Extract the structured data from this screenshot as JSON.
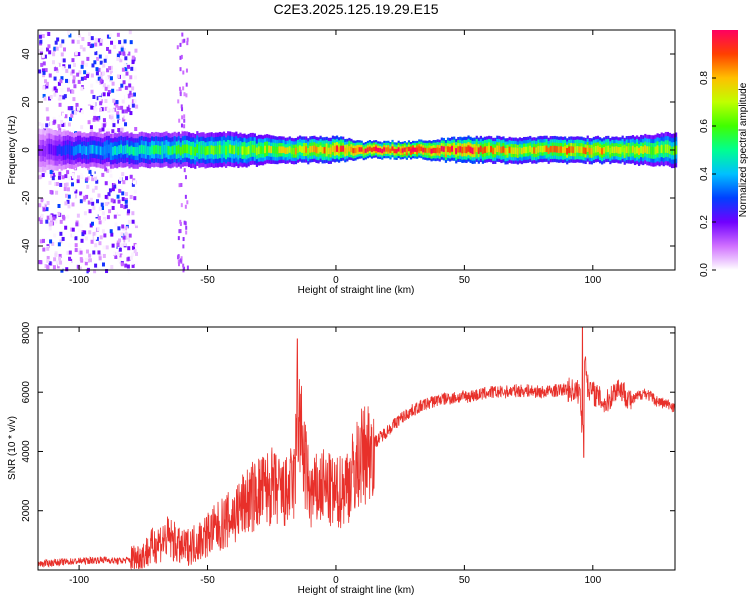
{
  "title": "C2E3.2025.125.19.29.E15",
  "chart_data": [
    {
      "type": "heatmap",
      "xlabel": "Height of straight line (km)",
      "ylabel": "Frequency (Hz)",
      "xlim": [
        -116,
        132
      ],
      "ylim": [
        -50,
        50
      ],
      "xticks": [
        -100,
        -50,
        0,
        50,
        100
      ],
      "yticks": [
        -40,
        -20,
        0,
        20,
        40
      ],
      "ridge_frequency_hz": 0,
      "colorbar": {
        "label": "Normalized spectral amplitude",
        "range": [
          0,
          1
        ],
        "ticks": [
          "0.0",
          "0.2",
          "0.4",
          "0.6",
          "0.8"
        ],
        "colors": [
          "#ffffff",
          "#d070ff",
          "#7000ff",
          "#0040ff",
          "#00c0ff",
          "#00ff90",
          "#40ff00",
          "#c0ff00",
          "#ffc000",
          "#ff4000",
          "#ff0060"
        ]
      },
      "ridge_profile": [
        {
          "x": -116,
          "amplitude": 0.15,
          "halfwidth_hz": 5
        },
        {
          "x": -100,
          "amplitude": 0.35,
          "halfwidth_hz": 4
        },
        {
          "x": -80,
          "amplitude": 0.45,
          "halfwidth_hz": 4
        },
        {
          "x": -60,
          "amplitude": 0.55,
          "halfwidth_hz": 4
        },
        {
          "x": -40,
          "amplitude": 0.6,
          "halfwidth_hz": 4
        },
        {
          "x": -20,
          "amplitude": 0.7,
          "halfwidth_hz": 3
        },
        {
          "x": 0,
          "amplitude": 0.85,
          "halfwidth_hz": 3
        },
        {
          "x": 10,
          "amplitude": 0.95,
          "halfwidth_hz": 2
        },
        {
          "x": 30,
          "amplitude": 1.0,
          "halfwidth_hz": 2
        },
        {
          "x": 50,
          "amplitude": 0.9,
          "halfwidth_hz": 3
        },
        {
          "x": 70,
          "amplitude": 0.75,
          "halfwidth_hz": 3
        },
        {
          "x": 90,
          "amplitude": 0.8,
          "halfwidth_hz": 3
        },
        {
          "x": 110,
          "amplitude": 0.75,
          "halfwidth_hz": 3
        },
        {
          "x": 132,
          "amplitude": 0.6,
          "halfwidth_hz": 4
        }
      ],
      "scatter_region_x": [
        -116,
        -78
      ]
    },
    {
      "type": "line",
      "xlabel": "Height of straight line (km)",
      "ylabel": "SNR (10 * v/v)",
      "xlim": [
        -116,
        132
      ],
      "ylim": [
        0,
        8200
      ],
      "xticks": [
        -100,
        -50,
        0,
        50,
        100
      ],
      "yticks": [
        2000,
        4000,
        6000,
        8000
      ],
      "series": [
        {
          "color": "#e8302a",
          "x": [
            -116,
            -110,
            -100,
            -90,
            -85,
            -80,
            -75,
            -70,
            -65,
            -60,
            -55,
            -50,
            -45,
            -40,
            -35,
            -30,
            -25,
            -20,
            -16,
            -15,
            -12,
            -10,
            -5,
            0,
            5,
            10,
            15,
            20,
            25,
            30,
            35,
            40,
            45,
            50,
            55,
            60,
            65,
            70,
            75,
            80,
            85,
            90,
            95,
            96,
            97,
            98,
            100,
            105,
            110,
            115,
            120,
            125,
            132
          ],
          "y": [
            200,
            250,
            300,
            350,
            300,
            350,
            500,
            900,
            1100,
            700,
            900,
            1200,
            1500,
            1800,
            2300,
            2600,
            2800,
            2500,
            3000,
            5500,
            3500,
            2500,
            2800,
            2500,
            3000,
            3800,
            4300,
            4700,
            5100,
            5400,
            5600,
            5750,
            5800,
            5850,
            5900,
            6000,
            6000,
            6050,
            6050,
            6000,
            6050,
            6100,
            6000,
            4500,
            7300,
            6200,
            6000,
            5600,
            6200,
            5700,
            6000,
            5700,
            5500
          ]
        }
      ],
      "spikes": [
        {
          "x": -15,
          "y": 7800
        },
        {
          "x": -16,
          "y": 3800
        },
        {
          "x": 96,
          "y": 8200
        },
        {
          "x": 96.5,
          "y": 3800
        },
        {
          "x": -20,
          "y": 1500
        }
      ]
    }
  ]
}
